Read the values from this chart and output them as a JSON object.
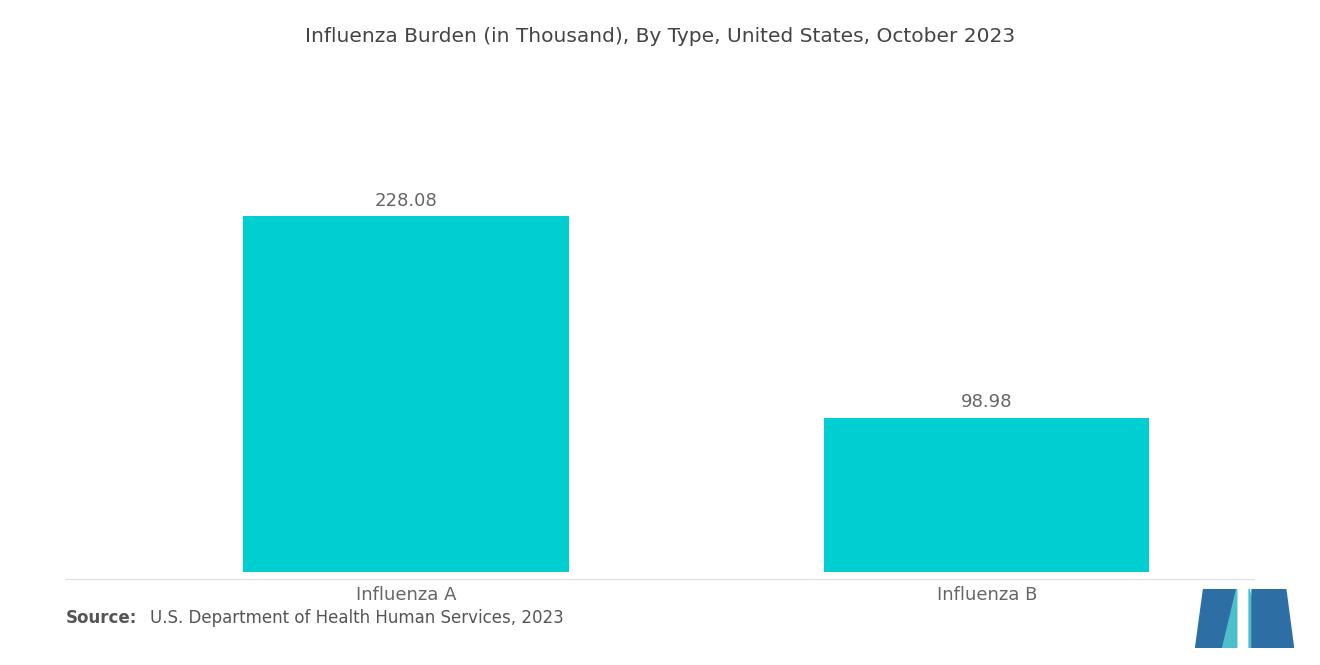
{
  "title": "Influenza Burden (in Thousand), By Type, United States, October 2023",
  "categories": [
    "Influenza A",
    "Influenza B"
  ],
  "values": [
    228.08,
    98.98
  ],
  "bar_color": "#00CED1",
  "value_labels": [
    "228.08",
    "98.98"
  ],
  "source_bold": "Source:",
  "source_text": "U.S. Department of Health Human Services, 2023",
  "background_color": "#ffffff",
  "title_fontsize": 14.5,
  "label_fontsize": 13,
  "value_fontsize": 13,
  "source_fontsize": 12,
  "ylim": [
    0,
    290
  ],
  "bar_width": 0.28,
  "x_positions": [
    0.27,
    0.77
  ]
}
